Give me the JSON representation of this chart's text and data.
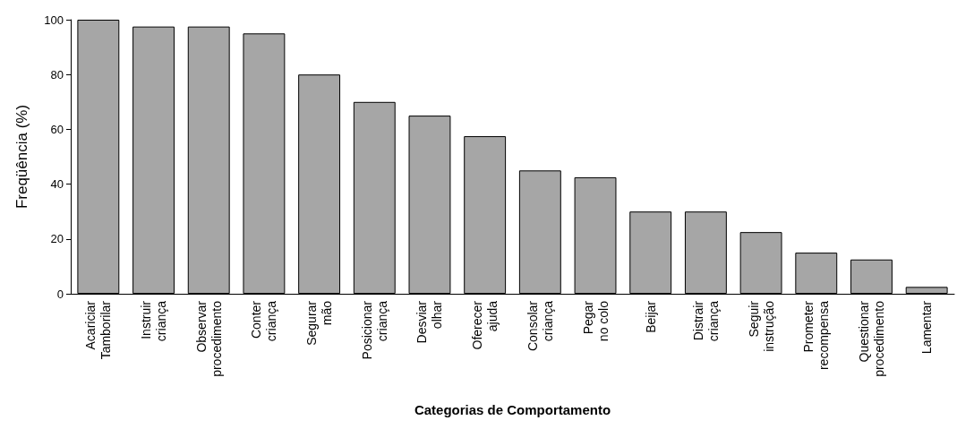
{
  "chart_data": {
    "type": "bar",
    "xlabel": "Categorias de Comportamento",
    "ylabel": "Freqüência (%)",
    "categories": [
      "Acariciar\nTamborilar",
      "Instruir\ncriança",
      "Observar\nprocedimento",
      "Conter\ncriança",
      "Segurar\nmão",
      "Posicionar\ncriança",
      "Desviar\nolhar",
      "Oferecer\najuda",
      "Consolar\ncriança",
      "Pegar\nno colo",
      "Beijar",
      "Distrair\ncriança",
      "Seguir\ninstrução",
      "Prometer\nrecompensa",
      "Questionar\nprocedimento",
      "Lamentar"
    ],
    "values": [
      100,
      97.5,
      97.5,
      95,
      80,
      70,
      65,
      57.5,
      45,
      42.5,
      30,
      30,
      22.5,
      15,
      12.5,
      2.5
    ],
    "color": "#a6a6a6",
    "ylim": [
      0,
      100
    ],
    "yticks": [
      0,
      20,
      40,
      60,
      80,
      100
    ],
    "grid": false
  }
}
